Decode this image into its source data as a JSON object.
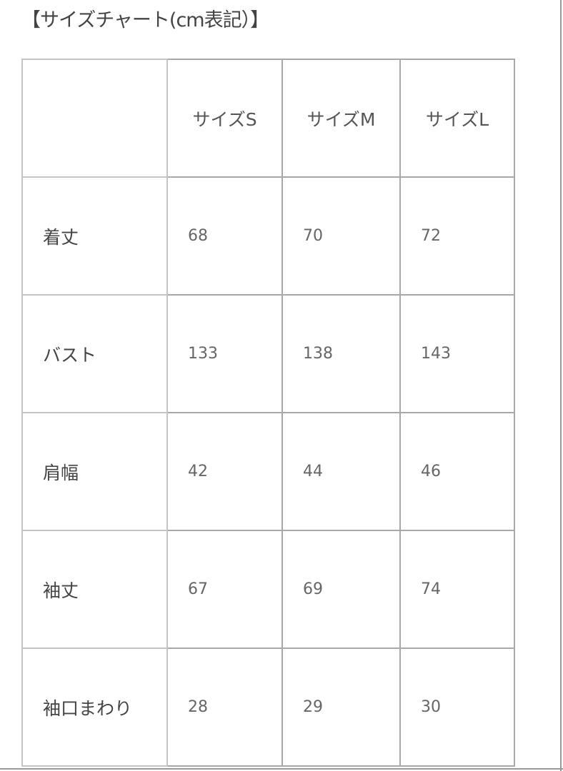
{
  "title": "【サイズチャート(cm表記）】",
  "table": {
    "columns": [
      "",
      "サイズS",
      "サイズM",
      "サイズL"
    ],
    "rows": [
      {
        "label": "着丈",
        "values": [
          "68",
          "70",
          "72"
        ]
      },
      {
        "label": "バスト",
        "values": [
          "133",
          "138",
          "143"
        ]
      },
      {
        "label": "肩幅",
        "values": [
          "42",
          "44",
          "46"
        ]
      },
      {
        "label": "袖丈",
        "values": [
          "67",
          "69",
          "74"
        ]
      },
      {
        "label": "袖口まわり",
        "values": [
          "28",
          "29",
          "30"
        ]
      }
    ]
  }
}
